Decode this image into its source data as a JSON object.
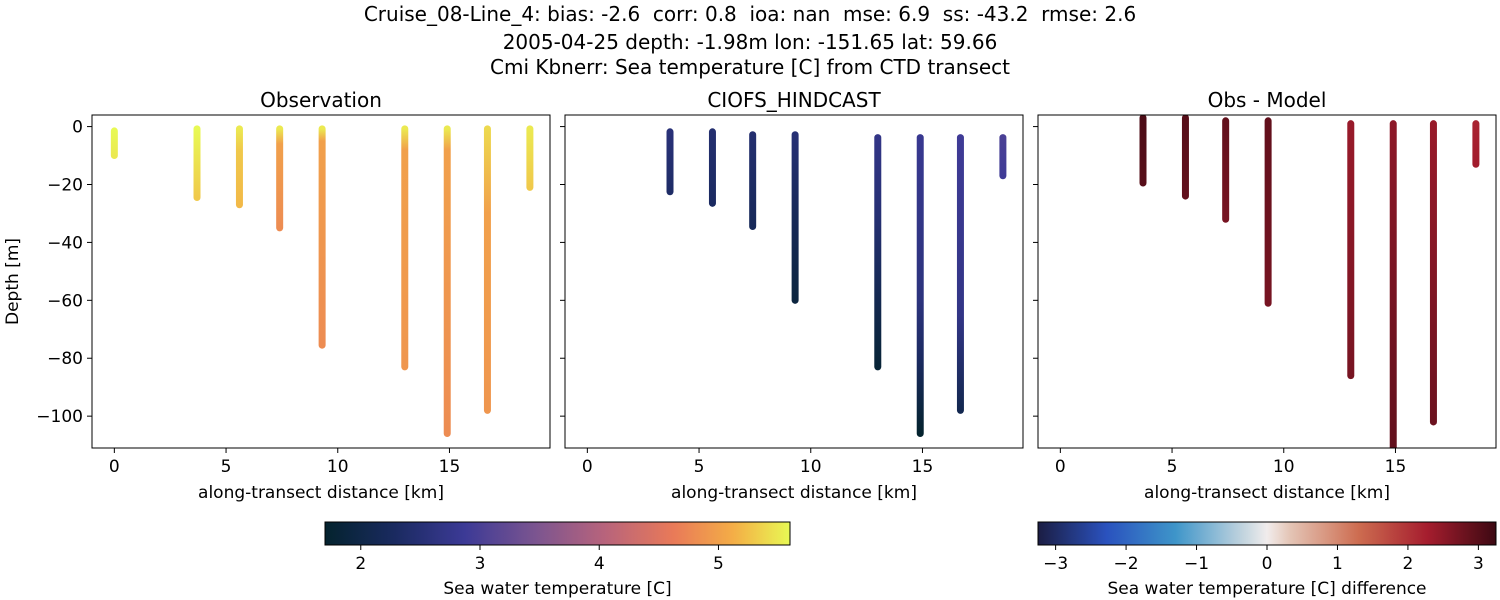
{
  "title": {
    "line1": "Cruise_08-Line_4: bias: -2.6  corr: 0.8  ioa: nan  mse: 6.9  ss: -43.2  rmse: 2.6",
    "line2": "2005-04-25 depth: -1.98m lon: -151.65 lat: 59.66",
    "line3": "Cmi Kbnerr: Sea temperature [C] from CTD transect"
  },
  "colors": {
    "axes": "#000000",
    "background": "#ffffff"
  },
  "chart_data": [
    {
      "type": "scatter",
      "title": "Observation",
      "xlabel": "along-transect distance [km]",
      "ylabel": "Depth [m]",
      "xlim": [
        -1,
        19.5
      ],
      "ylim": [
        -111,
        4
      ],
      "xticks": [
        0,
        5,
        10,
        15
      ],
      "yticks": [
        0,
        -20,
        -40,
        -60,
        -80,
        -100
      ],
      "colormap": "thermal",
      "colorbar": "temp",
      "profiles": [
        {
          "x": 0.0,
          "top": -1.5,
          "bottom": -10,
          "values": [
            [
              -1.5,
              5.6
            ],
            [
              -10,
              5.5
            ]
          ]
        },
        {
          "x": 3.7,
          "top": -0.8,
          "bottom": -24.5,
          "values": [
            [
              -0.8,
              5.6
            ],
            [
              -24.5,
              5.3
            ]
          ]
        },
        {
          "x": 5.6,
          "top": -0.8,
          "bottom": -27,
          "values": [
            [
              -0.8,
              5.5
            ],
            [
              -8,
              5.3
            ],
            [
              -27,
              5.2
            ]
          ]
        },
        {
          "x": 7.4,
          "top": -0.8,
          "bottom": -35,
          "values": [
            [
              -0.8,
              5.5
            ],
            [
              -6,
              5.0
            ],
            [
              -35,
              4.8
            ]
          ]
        },
        {
          "x": 9.3,
          "top": -0.8,
          "bottom": -75.5,
          "values": [
            [
              -0.8,
              5.5
            ],
            [
              -5,
              5.0
            ],
            [
              -75.5,
              4.8
            ]
          ]
        },
        {
          "x": 13.0,
          "top": -0.8,
          "bottom": -83,
          "values": [
            [
              -0.8,
              5.5
            ],
            [
              -8,
              5.0
            ],
            [
              -83,
              4.9
            ]
          ]
        },
        {
          "x": 14.9,
          "top": -0.8,
          "bottom": -106,
          "values": [
            [
              -0.8,
              5.5
            ],
            [
              -8,
              5.0
            ],
            [
              -106,
              4.8
            ]
          ]
        },
        {
          "x": 16.7,
          "top": -0.8,
          "bottom": -98,
          "values": [
            [
              -0.8,
              5.4
            ],
            [
              -30,
              5.0
            ],
            [
              -98,
              4.9
            ]
          ]
        },
        {
          "x": 18.6,
          "top": -0.8,
          "bottom": -21,
          "values": [
            [
              -0.8,
              5.5
            ],
            [
              -21,
              5.3
            ]
          ]
        }
      ]
    },
    {
      "type": "scatter",
      "title": "CIOFS_HINDCAST",
      "xlabel": "along-transect distance [km]",
      "ylabel": "",
      "xlim": [
        -1,
        19.5
      ],
      "ylim": [
        -111,
        4
      ],
      "xticks": [
        0,
        5,
        10,
        15
      ],
      "yticks": [
        0,
        -20,
        -40,
        -60,
        -80,
        -100
      ],
      "colormap": "thermal",
      "colorbar": "temp",
      "profiles": [
        {
          "x": 3.7,
          "top": -1.8,
          "bottom": -22.5,
          "values": [
            [
              -1.8,
              2.55
            ],
            [
              -22.5,
              2.35
            ]
          ]
        },
        {
          "x": 5.6,
          "top": -1.8,
          "bottom": -26.5,
          "values": [
            [
              -1.8,
              2.45
            ],
            [
              -26.5,
              2.3
            ]
          ]
        },
        {
          "x": 7.4,
          "top": -2.8,
          "bottom": -34.5,
          "values": [
            [
              -2.8,
              2.45
            ],
            [
              -34.5,
              2.2
            ]
          ]
        },
        {
          "x": 9.3,
          "top": -2.8,
          "bottom": -60,
          "values": [
            [
              -2.8,
              2.5
            ],
            [
              -30,
              2.2
            ],
            [
              -60,
              1.9
            ]
          ]
        },
        {
          "x": 13.0,
          "top": -3.8,
          "bottom": -83,
          "values": [
            [
              -3.8,
              2.7
            ],
            [
              -30,
              2.5
            ],
            [
              -60,
              2.1
            ],
            [
              -83,
              1.8
            ]
          ]
        },
        {
          "x": 14.9,
          "top": -3.8,
          "bottom": -106,
          "values": [
            [
              -3.8,
              2.8
            ],
            [
              -60,
              2.6
            ],
            [
              -80,
              2.3
            ],
            [
              -106,
              1.7
            ]
          ]
        },
        {
          "x": 16.7,
          "top": -3.8,
          "bottom": -98,
          "values": [
            [
              -3.8,
              2.9
            ],
            [
              -65,
              2.7
            ],
            [
              -98,
              2.1
            ]
          ]
        },
        {
          "x": 18.6,
          "top": -3.8,
          "bottom": -17,
          "values": [
            [
              -3.8,
              3.0
            ],
            [
              -17,
              2.9
            ]
          ]
        }
      ]
    },
    {
      "type": "scatter",
      "title": "Obs - Model",
      "xlabel": "along-transect distance [km]",
      "ylabel": "",
      "xlim": [
        -1,
        19.5
      ],
      "ylim": [
        -111,
        4
      ],
      "xticks": [
        0,
        5,
        10,
        15
      ],
      "yticks": [
        0,
        -20,
        -40,
        -60,
        -80,
        -100
      ],
      "colormap": "balance",
      "colorbar": "diff",
      "profiles": [
        {
          "x": 3.7,
          "top": 3,
          "bottom": -19.5,
          "values": [
            [
              3,
              3.1
            ],
            [
              -19.5,
              3.0
            ]
          ]
        },
        {
          "x": 5.6,
          "top": 3,
          "bottom": -24,
          "values": [
            [
              3,
              3.0
            ],
            [
              -24,
              2.9
            ]
          ]
        },
        {
          "x": 7.4,
          "top": 2,
          "bottom": -32,
          "values": [
            [
              2,
              2.9
            ],
            [
              -32,
              2.7
            ]
          ]
        },
        {
          "x": 9.3,
          "top": 2,
          "bottom": -61,
          "values": [
            [
              2,
              2.9
            ],
            [
              -61,
              2.7
            ]
          ]
        },
        {
          "x": 13.0,
          "top": 1,
          "bottom": -86,
          "values": [
            [
              1,
              2.4
            ],
            [
              -86,
              2.7
            ]
          ]
        },
        {
          "x": 14.9,
          "top": 1,
          "bottom": -111,
          "values": [
            [
              1,
              2.5
            ],
            [
              -111,
              2.9
            ]
          ]
        },
        {
          "x": 16.7,
          "top": 1,
          "bottom": -102,
          "values": [
            [
              1,
              2.4
            ],
            [
              -102,
              2.8
            ]
          ]
        },
        {
          "x": 18.6,
          "top": 1,
          "bottom": -13,
          "values": [
            [
              1,
              2.2
            ],
            [
              -13,
              2.3
            ]
          ]
        }
      ]
    }
  ],
  "colorbars": {
    "temp": {
      "label": "Sea water temperature [C]",
      "min": 1.7,
      "max": 5.6,
      "ticks": [
        2,
        3,
        4,
        5
      ],
      "colormap": "thermal"
    },
    "diff": {
      "label": "Sea water temperature [C] difference",
      "min": -3.25,
      "max": 3.25,
      "ticks": [
        -3,
        -2,
        -1,
        0,
        1,
        2,
        3
      ],
      "colormap": "balance"
    }
  },
  "colormaps": {
    "thermal": [
      [
        0.0,
        "#04232e"
      ],
      [
        0.15,
        "#1a2a60"
      ],
      [
        0.3,
        "#3c3a96"
      ],
      [
        0.45,
        "#7a5490"
      ],
      [
        0.6,
        "#b7637c"
      ],
      [
        0.75,
        "#e97a58"
      ],
      [
        0.88,
        "#f4ae46"
      ],
      [
        1.0,
        "#e8f954"
      ]
    ],
    "balance": [
      [
        0.0,
        "#1b1d43"
      ],
      [
        0.15,
        "#2a52be"
      ],
      [
        0.3,
        "#3e95c9"
      ],
      [
        0.45,
        "#c4d5df"
      ],
      [
        0.5,
        "#f1ecec"
      ],
      [
        0.55,
        "#e4c5b6"
      ],
      [
        0.7,
        "#cd6c50"
      ],
      [
        0.85,
        "#a51d2e"
      ],
      [
        1.0,
        "#3c0912"
      ]
    ]
  }
}
